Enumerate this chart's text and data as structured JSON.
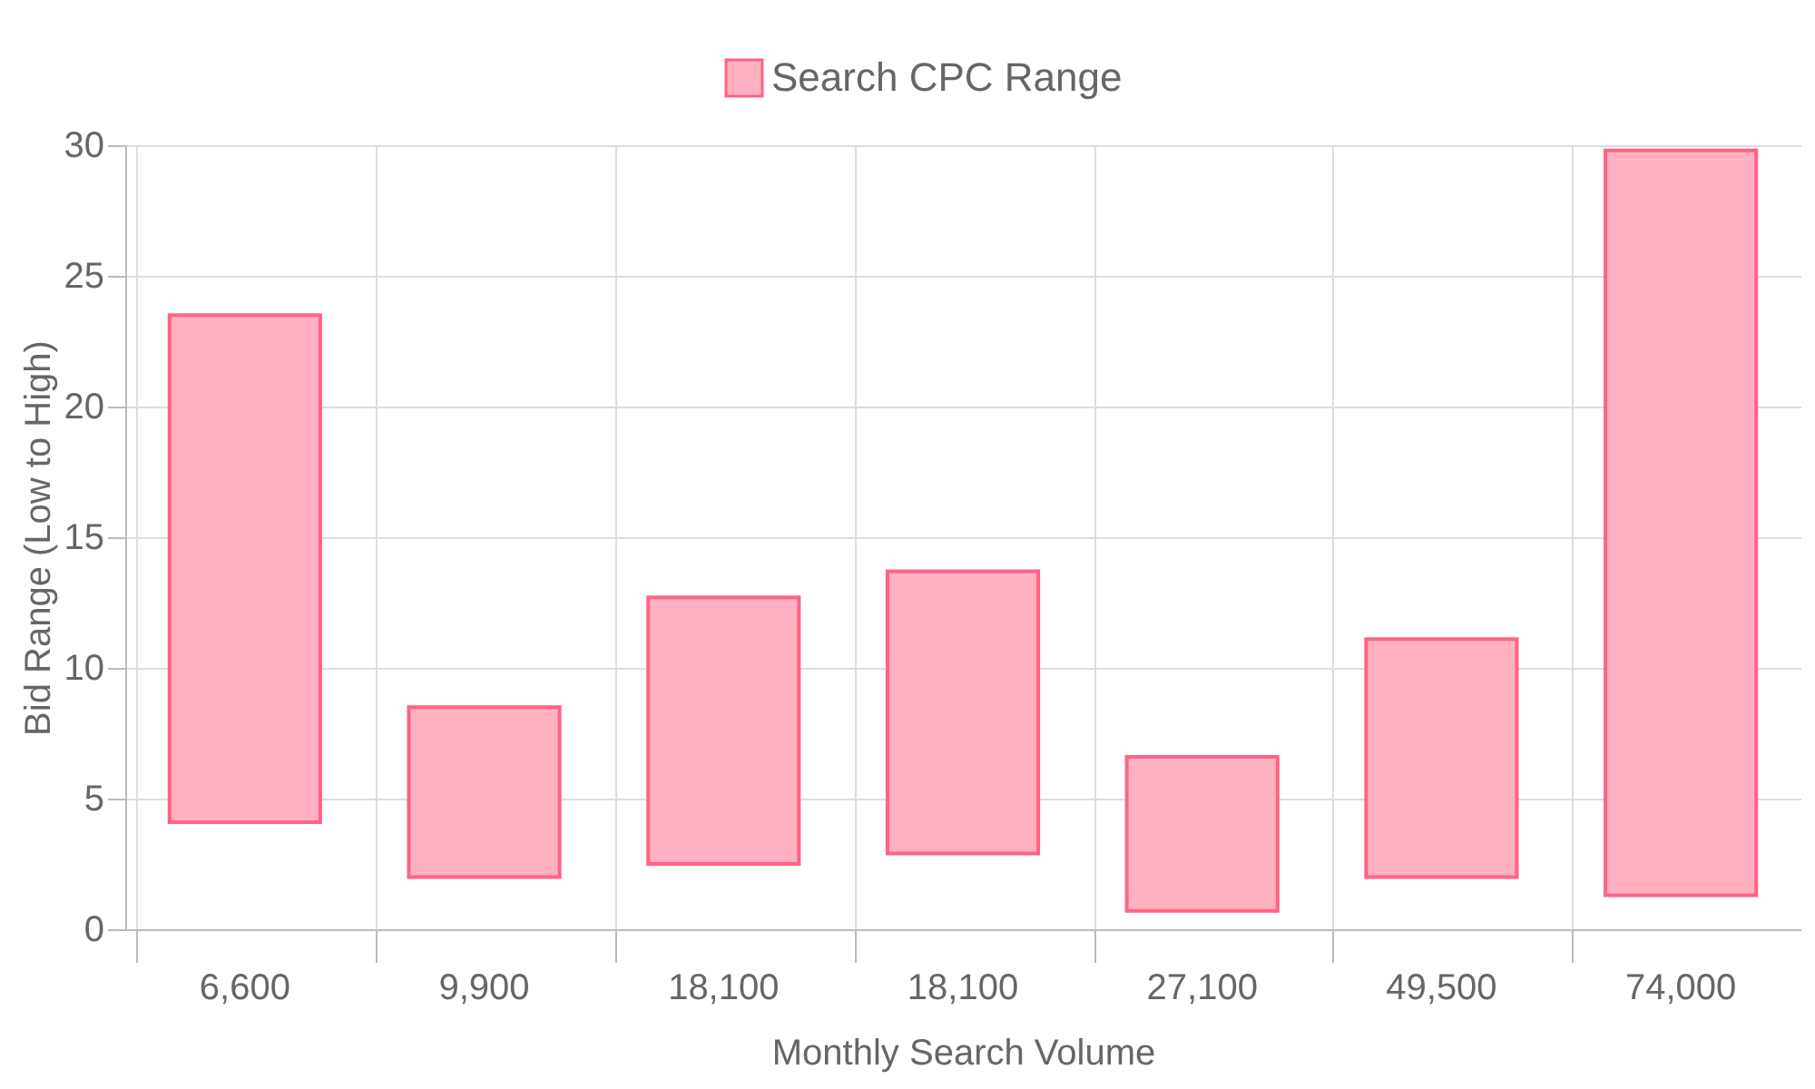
{
  "chart_data": {
    "type": "bar",
    "xlabel": "Monthly Search Volume",
    "ylabel": "Bid Range (Low to High)",
    "categories": [
      "6,600",
      "9,900",
      "18,100",
      "18,100",
      "27,100",
      "49,500",
      "74,000"
    ],
    "series": [
      {
        "name": "Search CPC Range",
        "color": "#ffb1c1",
        "base": [
          4.1,
          2.0,
          2.5,
          2.9,
          0.7,
          2.0,
          1.3
        ],
        "values": [
          19.4,
          6.5,
          10.2,
          10.8,
          5.9,
          9.1,
          28.5
        ]
      }
    ],
    "ylim": [
      0,
      30
    ],
    "yticks": [
      0,
      5,
      10,
      15,
      20,
      25,
      30
    ],
    "grid": true,
    "legend": "top"
  }
}
